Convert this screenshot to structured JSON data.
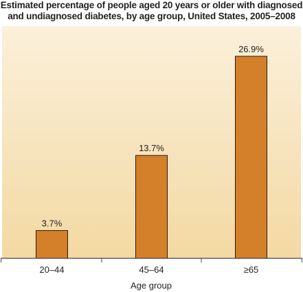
{
  "chart_data": {
    "type": "bar",
    "title_lines": [
      "Estimated percentage of people aged 20 years or older with diagnosed",
      "and undiagnosed diabetes, by age group, United States, 2005–2008"
    ],
    "categories": [
      "20–44",
      "45–64",
      "≥65"
    ],
    "values": [
      3.7,
      13.7,
      26.9
    ],
    "data_labels": [
      "3.7%",
      "13.7%",
      "26.9%"
    ],
    "xlabel": "Age group",
    "ylabel": "",
    "ylim": [
      0,
      30
    ],
    "grid": false,
    "legend": "none",
    "colors": {
      "bar_fill": "#d47f2a",
      "bar_stroke": "#2b1a0c",
      "panel_top": "#fbf0da",
      "panel_bottom": "#f3d9a3",
      "axis": "#444444",
      "text": "#231f20"
    }
  }
}
